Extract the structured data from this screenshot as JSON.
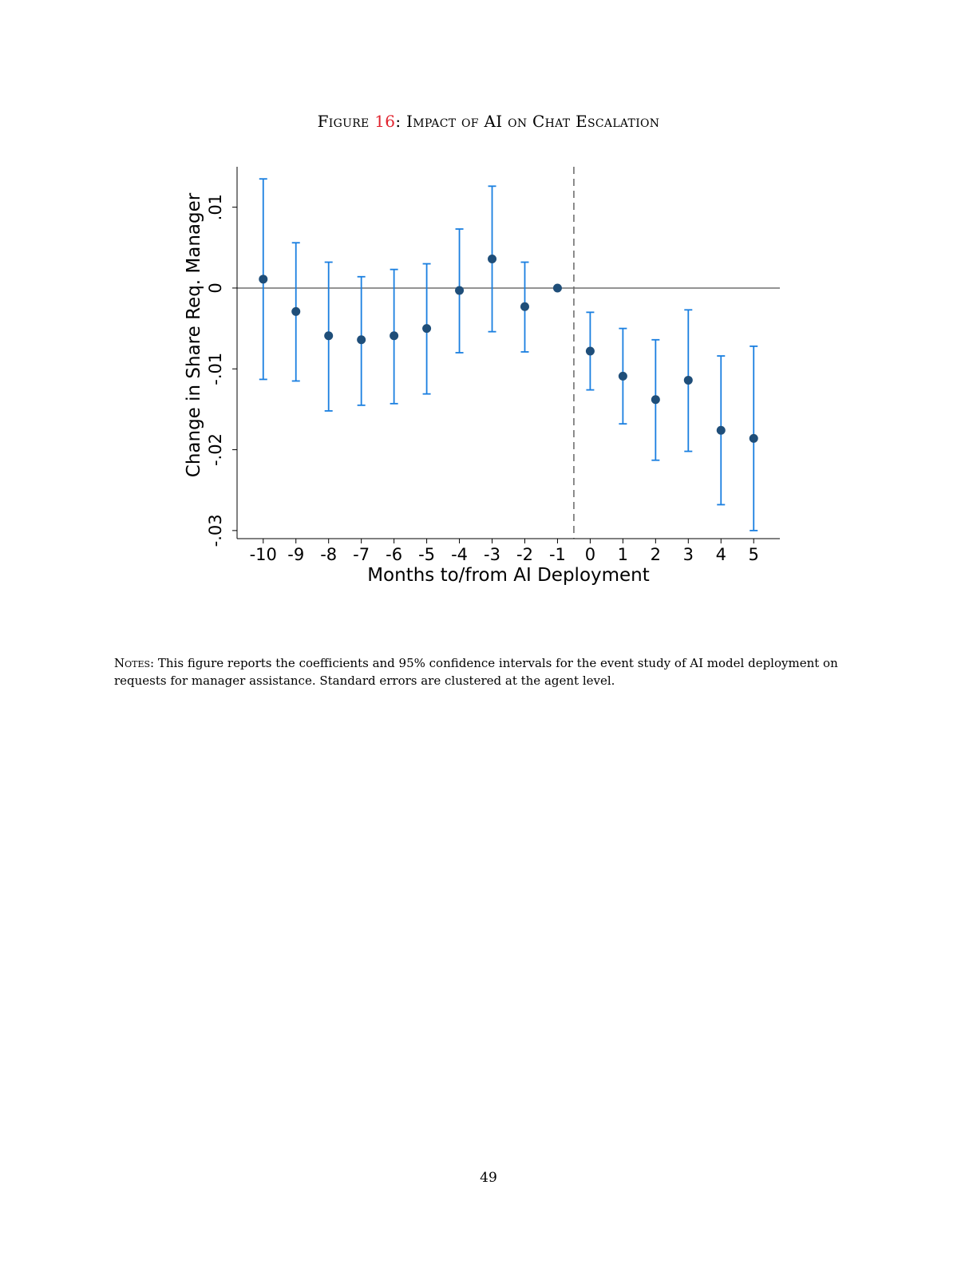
{
  "figure": {
    "label": "Figure",
    "number": "16",
    "separator": ":",
    "title": "Impact of AI on Chat Escalation"
  },
  "notes": {
    "lead": "Notes:",
    "text": "This figure reports the coefficients and 95% confidence intervals for the event study of AI model deployment on requests for manager assistance. Standard errors are clustered at the agent level."
  },
  "page_number": "49",
  "colors": {
    "point": "#1f4e79",
    "error_bar": "#1a7fe0",
    "zero_line": "#707070",
    "deployment_line": "#707070",
    "title_number": "#e0232e"
  },
  "chart_data": {
    "type": "scatter",
    "title": "",
    "xlabel": "Months to/from AI Deployment",
    "ylabel": "Change in Share Req. Manager",
    "x": [
      -10,
      -9,
      -8,
      -7,
      -6,
      -5,
      -4,
      -3,
      -2,
      -1,
      0,
      1,
      2,
      3,
      4,
      5
    ],
    "x_tick_labels": [
      "-10",
      "-9",
      "-8",
      "-7",
      "-6",
      "-5",
      "-4",
      "-3",
      "-2",
      "-1",
      "0",
      "1",
      "2",
      "3",
      "4",
      "5"
    ],
    "series": [
      {
        "values": [
          0.0011,
          -0.0029,
          -0.0059,
          -0.0064,
          -0.0059,
          -0.005,
          -0.0003,
          0.0036,
          -0.0023,
          0.0,
          -0.0078,
          -0.0109,
          -0.0138,
          -0.0114,
          -0.0176,
          -0.0186
        ],
        "ci_lower": [
          -0.0113,
          -0.0115,
          -0.0152,
          -0.0145,
          -0.0143,
          -0.0131,
          -0.008,
          -0.0054,
          -0.0079,
          0.0,
          -0.0126,
          -0.0168,
          -0.0213,
          -0.0202,
          -0.0268,
          -0.03
        ],
        "ci_upper": [
          0.0135,
          0.0056,
          0.0032,
          0.0014,
          0.0023,
          0.003,
          0.0073,
          0.0126,
          0.0032,
          0.0,
          -0.003,
          -0.005,
          -0.0064,
          -0.0027,
          -0.0084,
          -0.0072
        ]
      }
    ],
    "y_ticks": [
      -0.03,
      -0.02,
      -0.01,
      0,
      0.01
    ],
    "y_tick_labels": [
      "-.03",
      "-.02",
      "-.01",
      "0",
      ".01"
    ],
    "ylim": [
      -0.031,
      0.015
    ],
    "xlim": [
      -10.8,
      5.8
    ],
    "zero_reference_line": 0,
    "deployment_marker_x": -0.5,
    "grid": false,
    "legend": "none"
  }
}
